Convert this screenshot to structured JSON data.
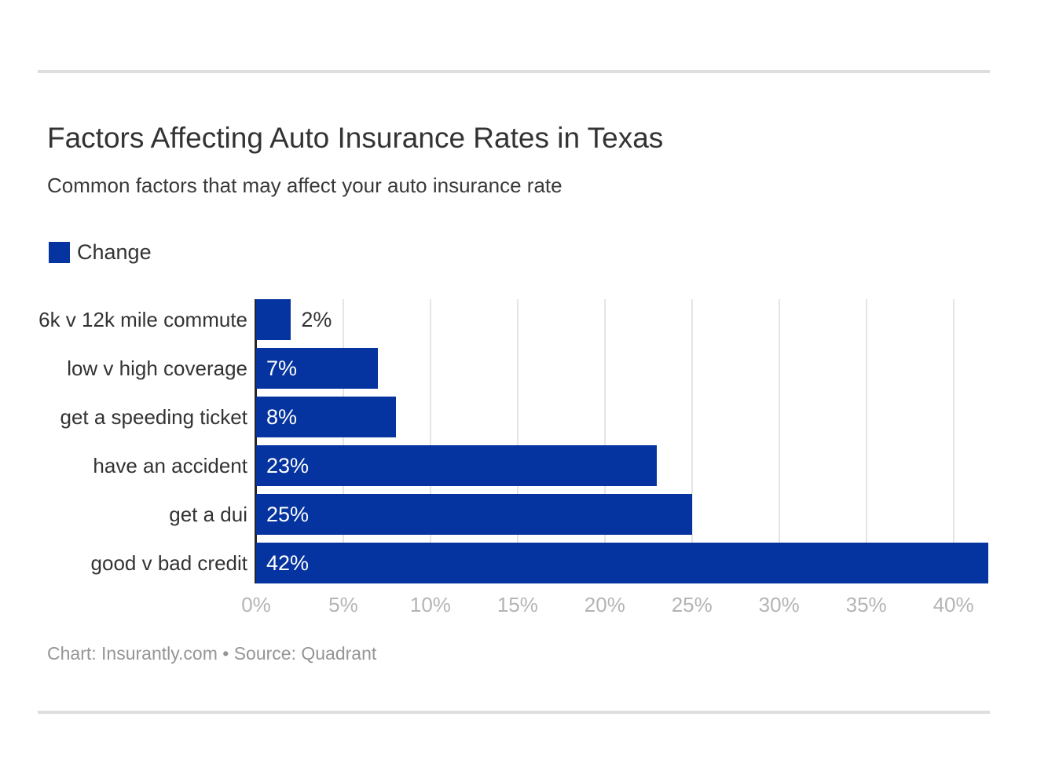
{
  "header": {
    "title": "Factors Affecting Auto Insurance Rates in Texas",
    "subtitle": "Common factors that may affect your auto insurance rate"
  },
  "legend": {
    "label": "Change",
    "color": "#05339f",
    "position": "top-left"
  },
  "chart_data": {
    "type": "bar",
    "orientation": "horizontal",
    "title": "Factors Affecting Auto Insurance Rates in Texas",
    "subtitle": "Common factors that may affect your auto insurance rate",
    "series_name": "Change",
    "categories": [
      "6k v 12k mile commute",
      "low v high coverage",
      "get a speeding ticket",
      "have an accident",
      "get a dui",
      "good v bad credit"
    ],
    "values": [
      2,
      7,
      8,
      23,
      25,
      42
    ],
    "value_labels": [
      "2%",
      "7%",
      "8%",
      "23%",
      "25%",
      "42%"
    ],
    "xlabel": "",
    "ylabel": "",
    "xlim": [
      0,
      42
    ],
    "x_tick_values": [
      0,
      5,
      10,
      15,
      20,
      25,
      30,
      35,
      40
    ],
    "x_tick_labels": [
      "0%",
      "5%",
      "10%",
      "15%",
      "20%",
      "25%",
      "30%",
      "35%",
      "40%"
    ],
    "grid": true,
    "bar_color": "#05339f"
  },
  "footer": {
    "credit": "Chart: Insurantly.com • Source: Quadrant"
  },
  "colors": {
    "bar": "#05339f",
    "title_text": "#333333",
    "tick_text": "#b4b4b4",
    "footer_text": "#959595",
    "gridline": "#e5e5e5",
    "axis_line": "#262626",
    "divider": "#dedede",
    "value_label_inside": "#ffffff",
    "value_label_outside": "#333333"
  }
}
